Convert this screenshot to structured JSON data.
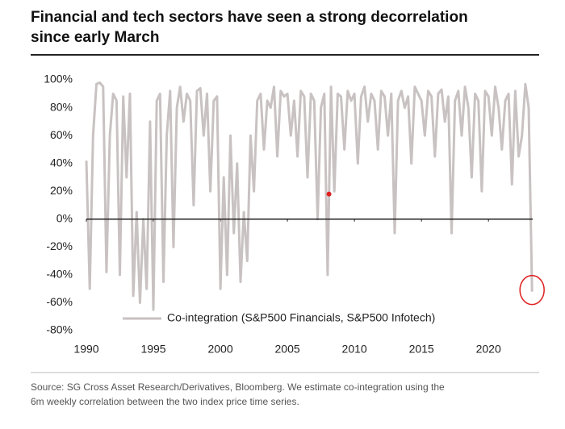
{
  "chart_data": {
    "type": "line",
    "title": [
      "Financial and tech sectors have seen a strong decorrelation",
      "since early March"
    ],
    "source": [
      "Source: SG Cross Asset Research/Derivatives, Bloomberg. We estimate co-integration using the",
      "6m weekly correlation between the two index price time series."
    ],
    "x": [
      1990,
      1990.25,
      1990.5,
      1990.75,
      1991,
      1991.25,
      1991.5,
      1991.75,
      1992,
      1992.25,
      1992.5,
      1992.75,
      1993,
      1993.25,
      1993.5,
      1993.75,
      1994,
      1994.25,
      1994.5,
      1994.75,
      1995,
      1995.25,
      1995.5,
      1995.75,
      1996,
      1996.25,
      1996.5,
      1996.75,
      1997,
      1997.25,
      1997.5,
      1997.75,
      1998,
      1998.25,
      1998.5,
      1998.75,
      1999,
      1999.25,
      1999.5,
      1999.75,
      2000,
      2000.25,
      2000.5,
      2000.75,
      2001,
      2001.25,
      2001.5,
      2001.75,
      2002,
      2002.25,
      2002.5,
      2002.75,
      2003,
      2003.25,
      2003.5,
      2003.75,
      2004,
      2004.25,
      2004.5,
      2004.75,
      2005,
      2005.25,
      2005.5,
      2005.75,
      2006,
      2006.25,
      2006.5,
      2006.75,
      2007,
      2007.25,
      2007.5,
      2007.75,
      2008,
      2008.25,
      2008.5,
      2008.75,
      2009,
      2009.25,
      2009.5,
      2009.75,
      2010,
      2010.25,
      2010.5,
      2010.75,
      2011,
      2011.25,
      2011.5,
      2011.75,
      2012,
      2012.25,
      2012.5,
      2012.75,
      2013,
      2013.25,
      2013.5,
      2013.75,
      2014,
      2014.25,
      2014.5,
      2014.75,
      2015,
      2015.25,
      2015.5,
      2015.75,
      2016,
      2016.25,
      2016.5,
      2016.75,
      2017,
      2017.25,
      2017.5,
      2017.75,
      2018,
      2018.25,
      2018.5,
      2018.75,
      2019,
      2019.25,
      2019.5,
      2019.75,
      2020,
      2020.25,
      2020.5,
      2020.75,
      2021,
      2021.25,
      2021.5,
      2021.75,
      2022,
      2022.25,
      2022.5,
      2022.75,
      2023,
      2023.25
    ],
    "series": [
      {
        "name": "Co-integration (S&P500 Financials, S&P500 Infotech)",
        "color": "#c9c2c2",
        "values": [
          42,
          -50,
          60,
          97,
          98,
          95,
          -38,
          60,
          90,
          85,
          -40,
          88,
          30,
          90,
          -55,
          5,
          -60,
          0,
          -50,
          70,
          -65,
          85,
          90,
          -45,
          60,
          92,
          -20,
          80,
          95,
          70,
          90,
          85,
          10,
          92,
          94,
          60,
          90,
          20,
          85,
          88,
          -50,
          30,
          -40,
          60,
          -10,
          40,
          -45,
          5,
          -30,
          60,
          20,
          85,
          90,
          50,
          85,
          80,
          95,
          45,
          92,
          88,
          90,
          60,
          85,
          45,
          92,
          88,
          30,
          90,
          85,
          0,
          80,
          90,
          -40,
          95,
          20,
          90,
          88,
          50,
          92,
          85,
          90,
          40,
          88,
          95,
          70,
          90,
          85,
          50,
          92,
          88,
          60,
          90,
          -10,
          85,
          92,
          80,
          88,
          40,
          95,
          90,
          85,
          60,
          92,
          88,
          45,
          90,
          93,
          70,
          88,
          -10,
          85,
          92,
          60,
          95,
          80,
          30,
          90,
          85,
          20,
          92,
          88,
          60,
          95,
          80,
          50,
          85,
          90,
          25,
          92,
          45,
          60,
          97,
          80,
          -52
        ]
      }
    ],
    "highlight": {
      "x": 2008.1,
      "y": 18,
      "color": "#e02020"
    },
    "xlim": [
      1990,
      2023.3
    ],
    "xticks": [
      1990,
      1995,
      2000,
      2005,
      2010,
      2015,
      2020
    ],
    "ylim": [
      -80,
      100
    ],
    "yticks": [
      {
        "value": -80,
        "label": "-80%"
      },
      {
        "value": -60,
        "label": "-60%"
      },
      {
        "value": -40,
        "label": "-40%"
      },
      {
        "value": -20,
        "label": "-20%"
      },
      {
        "value": 0,
        "label": "0%"
      },
      {
        "value": 20,
        "label": "20%"
      },
      {
        "value": 40,
        "label": "40%"
      },
      {
        "value": 60,
        "label": "60%"
      },
      {
        "value": 80,
        "label": "80%"
      },
      {
        "value": 100,
        "label": "100%"
      }
    ]
  }
}
